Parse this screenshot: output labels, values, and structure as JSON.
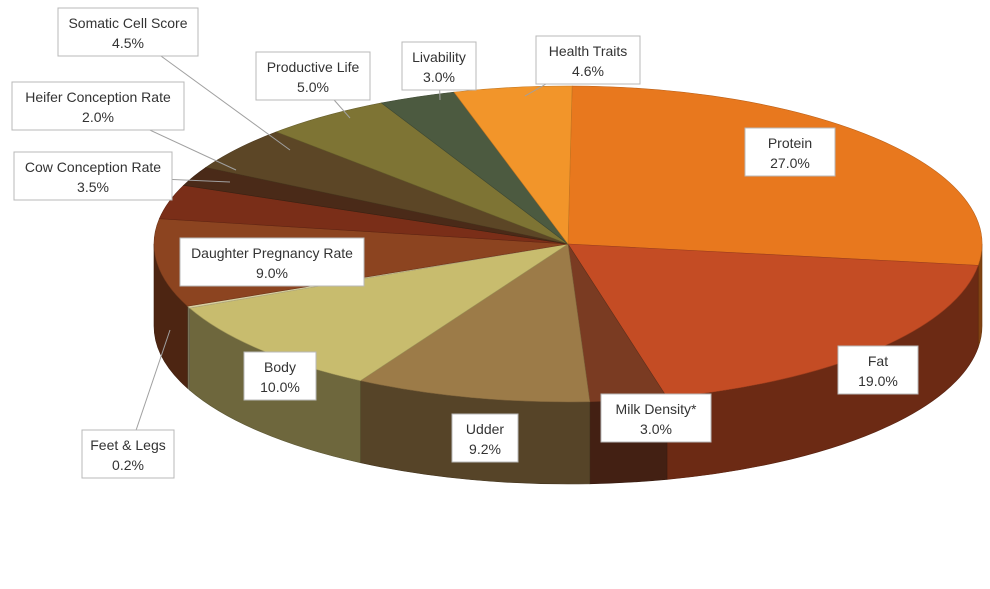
{
  "chart_data": {
    "type": "pie",
    "title": "",
    "style": "3d-exploded-pie",
    "slices": [
      {
        "label": "Protein",
        "value": 27.0,
        "value_label": "27.0%",
        "color": "#E8781E"
      },
      {
        "label": "Fat",
        "value": 19.0,
        "value_label": "19.0%",
        "color": "#C44C24"
      },
      {
        "label": "Milk Density*",
        "value": 3.0,
        "value_label": "3.0%",
        "color": "#7A3B22"
      },
      {
        "label": "Udder",
        "value": 9.2,
        "value_label": "9.2%",
        "color": "#9C7B48"
      },
      {
        "label": "Body",
        "value": 10.0,
        "value_label": "10.0%",
        "color": "#C8BC6E"
      },
      {
        "label": "Feet & Legs",
        "value": 0.2,
        "value_label": "0.2%",
        "color": "#D8D0A0"
      },
      {
        "label": "Daughter Pregnancy Rate",
        "value": 9.0,
        "value_label": "9.0%",
        "color": "#8C4420"
      },
      {
        "label": "Cow Conception Rate",
        "value": 3.5,
        "value_label": "3.5%",
        "color": "#7A2E18"
      },
      {
        "label": "Heifer Conception Rate",
        "value": 2.0,
        "value_label": "2.0%",
        "color": "#4A2A18"
      },
      {
        "label": "Somatic Cell Score",
        "value": 4.5,
        "value_label": "4.5%",
        "color": "#5C4626"
      },
      {
        "label": "Productive Life",
        "value": 5.0,
        "value_label": "5.0%",
        "color": "#7E7434"
      },
      {
        "label": "Livability",
        "value": 3.0,
        "value_label": "3.0%",
        "color": "#4C5A40"
      },
      {
        "label": "Health Traits",
        "value": 4.6,
        "value_label": "4.6%",
        "color": "#F2952A"
      }
    ]
  }
}
